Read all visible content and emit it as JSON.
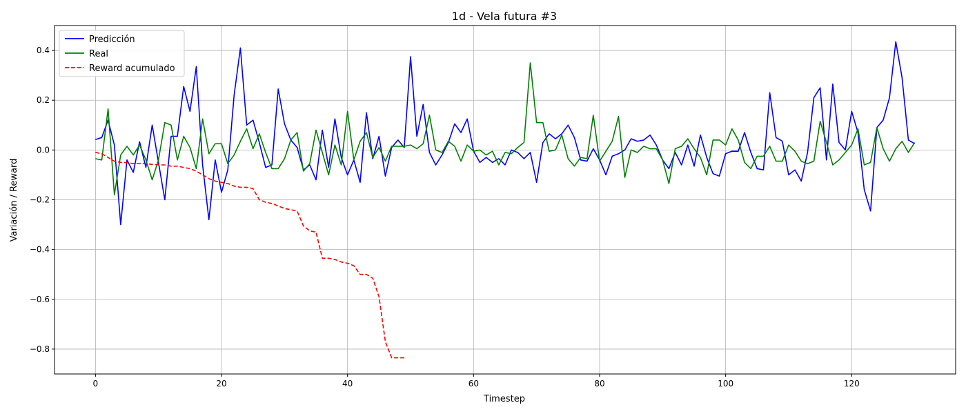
{
  "chart_data": {
    "type": "line",
    "title": "1d - Vela futura #3",
    "xlabel": "Timestep",
    "ylabel": "Variación / Reward",
    "xlim": [
      -6.5,
      136.5
    ],
    "ylim": [
      -0.9,
      0.5
    ],
    "x_ticks": [
      0,
      20,
      40,
      60,
      80,
      100,
      120
    ],
    "y_ticks": [
      -0.8,
      -0.6,
      -0.4,
      -0.2,
      0.0,
      0.2,
      0.4
    ],
    "x_tick_labels": [
      "0",
      "20",
      "40",
      "60",
      "80",
      "100",
      "120"
    ],
    "y_tick_labels": [
      "−0.8",
      "−0.6",
      "−0.4",
      "−0.2",
      "0.0",
      "0.2",
      "0.4"
    ],
    "grid": true,
    "legend_position": "upper-left",
    "series": [
      {
        "name": "Predicción",
        "color": "#0000ff",
        "style": "solid",
        "x_start": 0,
        "values": [
          0.042,
          0.05,
          0.12,
          0.02,
          -0.3,
          -0.04,
          -0.09,
          0.033,
          -0.07,
          0.1,
          -0.05,
          -0.2,
          0.055,
          0.055,
          0.255,
          0.155,
          0.335,
          -0.06,
          -0.28,
          -0.04,
          -0.17,
          -0.08,
          0.22,
          0.41,
          0.1,
          0.12,
          0.03,
          -0.07,
          -0.06,
          0.245,
          0.105,
          0.04,
          0.01,
          -0.08,
          -0.06,
          -0.12,
          0.08,
          -0.07,
          0.125,
          -0.03,
          -0.1,
          -0.04,
          -0.13,
          0.15,
          -0.035,
          0.055,
          -0.105,
          0.01,
          0.04,
          0.01,
          0.375,
          0.055,
          0.183,
          -0.01,
          -0.06,
          -0.02,
          0.03,
          0.105,
          0.07,
          0.125,
          -0.005,
          -0.05,
          -0.03,
          -0.05,
          -0.035,
          -0.06,
          0.0,
          -0.01,
          -0.035,
          -0.01,
          -0.13,
          0.03,
          0.065,
          0.045,
          0.065,
          0.1,
          0.05,
          -0.04,
          -0.045,
          0.005,
          -0.04,
          -0.1,
          -0.025,
          -0.015,
          0.0,
          0.045,
          0.035,
          0.04,
          0.06,
          0.02,
          -0.04,
          -0.075,
          -0.01,
          -0.06,
          0.02,
          -0.065,
          0.06,
          -0.03,
          -0.095,
          -0.105,
          -0.015,
          -0.005,
          -0.005,
          0.07,
          -0.01,
          -0.075,
          -0.08,
          0.23,
          0.05,
          0.035,
          -0.1,
          -0.08,
          -0.125,
          -0.01,
          0.21,
          0.25,
          -0.04,
          0.265,
          0.03,
          0.0,
          0.155,
          0.07,
          -0.16,
          -0.245,
          0.09,
          0.12,
          0.21,
          0.435,
          0.29,
          0.04,
          0.025
        ]
      },
      {
        "name": "Real",
        "color": "#008000",
        "style": "solid",
        "x_start": 0,
        "values": [
          -0.035,
          -0.04,
          0.165,
          -0.18,
          -0.02,
          0.015,
          -0.02,
          0.02,
          -0.04,
          -0.12,
          -0.04,
          0.11,
          0.1,
          -0.04,
          0.055,
          0.01,
          -0.075,
          0.125,
          -0.015,
          0.025,
          0.025,
          -0.055,
          -0.02,
          0.035,
          0.085,
          0.005,
          0.065,
          -0.01,
          -0.075,
          -0.075,
          -0.035,
          0.04,
          0.07,
          -0.085,
          -0.055,
          0.08,
          -0.01,
          -0.1,
          0.02,
          -0.06,
          0.155,
          -0.04,
          0.035,
          0.07,
          -0.03,
          0.01,
          -0.045,
          0.015,
          0.015,
          0.015,
          0.02,
          0.005,
          0.025,
          0.14,
          0.0,
          -0.01,
          0.035,
          0.015,
          -0.045,
          0.02,
          -0.005,
          0.0,
          -0.02,
          -0.005,
          -0.06,
          -0.01,
          -0.015,
          0.01,
          0.03,
          0.35,
          0.11,
          0.11,
          -0.005,
          0.0,
          0.06,
          -0.035,
          -0.065,
          -0.03,
          -0.035,
          0.14,
          -0.045,
          -0.005,
          0.035,
          0.135,
          -0.11,
          0.0,
          -0.01,
          0.015,
          0.005,
          0.005,
          -0.04,
          -0.135,
          0.005,
          0.015,
          0.045,
          0.005,
          -0.03,
          -0.1,
          0.04,
          0.04,
          0.02,
          0.085,
          0.04,
          -0.05,
          -0.075,
          -0.025,
          -0.025,
          0.015,
          -0.045,
          -0.045,
          0.02,
          -0.005,
          -0.045,
          -0.055,
          -0.045,
          0.115,
          0.03,
          -0.06,
          -0.04,
          -0.01,
          0.02,
          0.085,
          -0.06,
          -0.05,
          0.09,
          0.005,
          -0.045,
          0.005,
          0.035,
          -0.01,
          0.03
        ]
      },
      {
        "name": "Reward acumulado",
        "color": "#ff0000",
        "style": "dashed",
        "x_start": 0,
        "values": [
          -0.01,
          -0.015,
          -0.03,
          -0.045,
          -0.05,
          -0.05,
          -0.055,
          -0.055,
          -0.055,
          -0.058,
          -0.06,
          -0.06,
          -0.065,
          -0.065,
          -0.07,
          -0.075,
          -0.085,
          -0.1,
          -0.115,
          -0.125,
          -0.13,
          -0.135,
          -0.145,
          -0.15,
          -0.15,
          -0.155,
          -0.2,
          -0.21,
          -0.215,
          -0.225,
          -0.235,
          -0.24,
          -0.245,
          -0.305,
          -0.325,
          -0.33,
          -0.435,
          -0.435,
          -0.44,
          -0.45,
          -0.455,
          -0.465,
          -0.5,
          -0.5,
          -0.515,
          -0.59,
          -0.77,
          -0.835,
          -0.835,
          -0.835
        ]
      }
    ]
  }
}
